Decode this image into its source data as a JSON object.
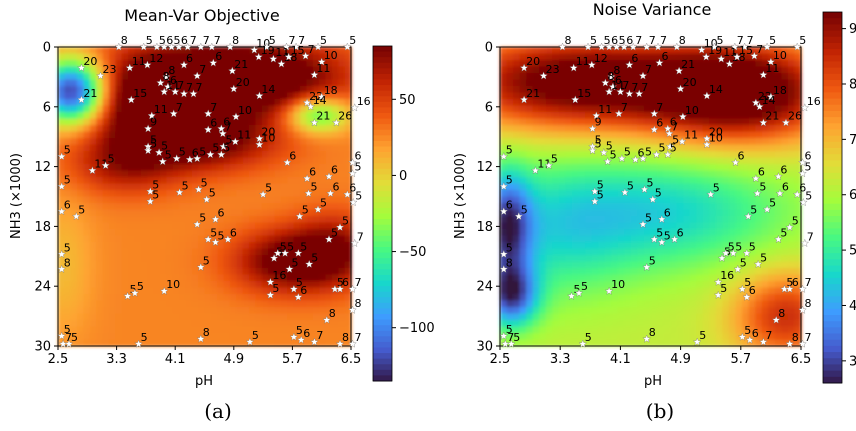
{
  "figure": {
    "caption_left": "(a)",
    "caption_right": "(b)"
  },
  "chart_data": [
    {
      "type": "heatmap",
      "title": "Mean-Var Objective",
      "xlabel": "pH",
      "ylabel": "NH3 (×1000)",
      "xlim": [
        2.5,
        6.5
      ],
      "ylim": [
        0,
        30
      ],
      "y_inverted": true,
      "x_ticks": [
        "2.5",
        "3.3",
        "4.1",
        "4.9",
        "5.7",
        "6.5"
      ],
      "y_ticks": [
        "0",
        "6",
        "12",
        "18",
        "24",
        "30"
      ],
      "colormap": "turbo",
      "colorbar": {
        "min": -135,
        "max": 85,
        "ticks": [
          "50",
          "0",
          "−50",
          "−100"
        ],
        "tick_values": [
          50,
          0,
          -50,
          -100
        ]
      },
      "blobs": [
        {
          "x": 3.9,
          "y": 5.5,
          "amp": 95,
          "sx": 0.75,
          "sy": 3.6
        },
        {
          "x": 5.25,
          "y": 3.0,
          "amp": 80,
          "sx": 0.85,
          "sy": 2.6
        },
        {
          "x": 4.5,
          "y": 9.5,
          "amp": 45,
          "sx": 0.75,
          "sy": 2.0
        },
        {
          "x": 5.7,
          "y": 21.5,
          "amp": 70,
          "sx": 0.55,
          "sy": 2.2
        },
        {
          "x": 6.3,
          "y": 20.0,
          "amp": 38,
          "sx": 0.4,
          "sy": 2.5
        },
        {
          "x": 3.4,
          "y": 12.0,
          "amp": 35,
          "sx": 0.5,
          "sy": 2.0
        },
        {
          "x": 2.7,
          "y": 4.5,
          "amp": -170,
          "sx": 0.33,
          "sy": 2.3
        },
        {
          "x": 6.05,
          "y": 6.8,
          "amp": -80,
          "sx": 0.3,
          "sy": 1.3
        },
        {
          "x": 2.55,
          "y": 22.0,
          "amp": -18,
          "sx": 0.3,
          "sy": 5.0
        }
      ],
      "base": 28
    },
    {
      "type": "heatmap",
      "title": "Noise Variance",
      "xlabel": "pH",
      "ylabel": "NH3 (×1000)",
      "xlim": [
        2.5,
        6.5
      ],
      "ylim": [
        0,
        30
      ],
      "y_inverted": true,
      "x_ticks": [
        "2.5",
        "3.3",
        "4.1",
        "4.9",
        "5.7",
        "6.5"
      ],
      "y_ticks": [
        "0",
        "6",
        "12",
        "18",
        "24",
        "30"
      ],
      "colormap": "turbo",
      "colorbar": {
        "min": 2.6,
        "max": 9.3,
        "ticks": [
          "9",
          "8",
          "7",
          "6",
          "5",
          "4",
          "3"
        ],
        "tick_values": [
          9,
          8,
          7,
          6,
          5,
          4,
          3
        ]
      },
      "blobs": [
        {
          "x": 3.5,
          "y": 3.5,
          "amp": 3.4,
          "sx": 1.2,
          "sy": 3.4
        },
        {
          "x": 5.7,
          "y": 4.5,
          "amp": 3.6,
          "sx": 0.9,
          "sy": 3.6
        },
        {
          "x": 6.3,
          "y": 27.0,
          "amp": 2.2,
          "sx": 0.5,
          "sy": 3.2
        },
        {
          "x": 4.8,
          "y": 16.5,
          "amp": -1.6,
          "sx": 1.1,
          "sy": 4.0
        },
        {
          "x": 3.2,
          "y": 18.5,
          "amp": -1.3,
          "sx": 0.8,
          "sy": 5.0
        },
        {
          "x": 2.6,
          "y": 18.0,
          "amp": -2.6,
          "sx": 0.22,
          "sy": 3.8
        },
        {
          "x": 2.65,
          "y": 25.0,
          "amp": -2.8,
          "sx": 0.25,
          "sy": 2.2
        }
      ],
      "base": 6.3
    }
  ],
  "annotations": [
    {
      "x": 3.33,
      "y": 0.0,
      "t": "8"
    },
    {
      "x": 3.67,
      "y": 0.0,
      "t": "5"
    },
    {
      "x": 3.85,
      "y": 0.0,
      "t": "5"
    },
    {
      "x": 3.95,
      "y": 0.0,
      "t": "6"
    },
    {
      "x": 4.05,
      "y": 0.0,
      "t": "5"
    },
    {
      "x": 4.15,
      "y": 0.0,
      "t": "6"
    },
    {
      "x": 4.27,
      "y": 0.0,
      "t": "7"
    },
    {
      "x": 4.45,
      "y": 0.0,
      "t": "7"
    },
    {
      "x": 4.6,
      "y": 0.0,
      "t": "7"
    },
    {
      "x": 4.85,
      "y": 0.0,
      "t": "8"
    },
    {
      "x": 5.18,
      "y": 0.3,
      "t": "10"
    },
    {
      "x": 5.35,
      "y": 0.0,
      "t": "5"
    },
    {
      "x": 5.62,
      "y": 0.0,
      "t": "7"
    },
    {
      "x": 5.75,
      "y": 0.0,
      "t": "7"
    },
    {
      "x": 6.05,
      "y": 0.0,
      "t": "5"
    },
    {
      "x": 6.45,
      "y": 0.0,
      "t": "5"
    },
    {
      "x": 2.82,
      "y": 2.1,
      "t": "20"
    },
    {
      "x": 3.08,
      "y": 2.9,
      "t": "23"
    },
    {
      "x": 3.48,
      "y": 2.1,
      "t": "11"
    },
    {
      "x": 3.72,
      "y": 1.8,
      "t": "12"
    },
    {
      "x": 4.22,
      "y": 1.8,
      "t": "6"
    },
    {
      "x": 3.98,
      "y": 3.0,
      "t": "8"
    },
    {
      "x": 4.4,
      "y": 2.9,
      "t": "7"
    },
    {
      "x": 4.62,
      "y": 1.6,
      "t": "6"
    },
    {
      "x": 4.88,
      "y": 2.4,
      "t": "21"
    },
    {
      "x": 5.24,
      "y": 1.0,
      "t": "19"
    },
    {
      "x": 5.44,
      "y": 1.2,
      "t": "11"
    },
    {
      "x": 5.55,
      "y": 1.7,
      "t": "18"
    },
    {
      "x": 5.65,
      "y": 1.0,
      "t": "15"
    },
    {
      "x": 5.88,
      "y": 0.9,
      "t": "7"
    },
    {
      "x": 6.1,
      "y": 1.5,
      "t": "10"
    },
    {
      "x": 6.0,
      "y": 2.8,
      "t": "11"
    },
    {
      "x": 3.9,
      "y": 3.6,
      "t": "8"
    },
    {
      "x": 4.0,
      "y": 4.0,
      "t": "6"
    },
    {
      "x": 3.95,
      "y": 4.5,
      "t": "11"
    },
    {
      "x": 4.1,
      "y": 4.5,
      "t": "7"
    },
    {
      "x": 4.22,
      "y": 4.7,
      "t": "7"
    },
    {
      "x": 4.35,
      "y": 4.7,
      "t": "7"
    },
    {
      "x": 4.9,
      "y": 4.2,
      "t": "20"
    },
    {
      "x": 5.25,
      "y": 4.9,
      "t": "14"
    },
    {
      "x": 2.82,
      "y": 5.3,
      "t": "21"
    },
    {
      "x": 3.5,
      "y": 5.3,
      "t": "15"
    },
    {
      "x": 3.78,
      "y": 6.9,
      "t": "11"
    },
    {
      "x": 4.08,
      "y": 6.7,
      "t": "7"
    },
    {
      "x": 4.55,
      "y": 6.7,
      "t": "7"
    },
    {
      "x": 4.93,
      "y": 7.0,
      "t": "10"
    },
    {
      "x": 5.9,
      "y": 5.6,
      "t": "22"
    },
    {
      "x": 6.1,
      "y": 5.0,
      "t": "18"
    },
    {
      "x": 5.95,
      "y": 6.0,
      "t": "14"
    },
    {
      "x": 6.0,
      "y": 7.6,
      "t": "21"
    },
    {
      "x": 6.3,
      "y": 7.6,
      "t": "26"
    },
    {
      "x": 6.55,
      "y": 6.1,
      "t": "16"
    },
    {
      "x": 3.73,
      "y": 8.2,
      "t": "9"
    },
    {
      "x": 4.55,
      "y": 8.3,
      "t": "6"
    },
    {
      "x": 4.73,
      "y": 8.2,
      "t": "6"
    },
    {
      "x": 4.75,
      "y": 8.7,
      "t": "7"
    },
    {
      "x": 5.25,
      "y": 9.2,
      "t": "20"
    },
    {
      "x": 5.25,
      "y": 9.8,
      "t": "10"
    },
    {
      "x": 4.92,
      "y": 9.5,
      "t": "11"
    },
    {
      "x": 4.76,
      "y": 10.0,
      "t": "5"
    },
    {
      "x": 3.73,
      "y": 10.0,
      "t": "5"
    },
    {
      "x": 3.73,
      "y": 10.4,
      "t": "5"
    },
    {
      "x": 3.88,
      "y": 10.6,
      "t": "5"
    },
    {
      "x": 3.93,
      "y": 11.5,
      "t": "5"
    },
    {
      "x": 4.12,
      "y": 11.2,
      "t": "5"
    },
    {
      "x": 4.3,
      "y": 11.3,
      "t": "6"
    },
    {
      "x": 4.4,
      "y": 11.2,
      "t": "5"
    },
    {
      "x": 4.58,
      "y": 10.8,
      "t": "5"
    },
    {
      "x": 4.73,
      "y": 10.8,
      "t": "5"
    },
    {
      "x": 5.63,
      "y": 11.6,
      "t": "6"
    },
    {
      "x": 2.55,
      "y": 11.0,
      "t": "5"
    },
    {
      "x": 2.97,
      "y": 12.4,
      "t": "11"
    },
    {
      "x": 3.15,
      "y": 11.9,
      "t": "5"
    },
    {
      "x": 6.52,
      "y": 11.6,
      "t": "6"
    },
    {
      "x": 6.52,
      "y": 12.7,
      "t": "5"
    },
    {
      "x": 5.9,
      "y": 13.2,
      "t": "6"
    },
    {
      "x": 6.2,
      "y": 13.0,
      "t": "6"
    },
    {
      "x": 2.55,
      "y": 14.0,
      "t": "5"
    },
    {
      "x": 5.3,
      "y": 14.8,
      "t": "5"
    },
    {
      "x": 5.92,
      "y": 14.7,
      "t": "5"
    },
    {
      "x": 6.22,
      "y": 14.7,
      "t": "6"
    },
    {
      "x": 6.45,
      "y": 14.8,
      "t": "6"
    },
    {
      "x": 6.53,
      "y": 15.6,
      "t": "5"
    },
    {
      "x": 3.76,
      "y": 14.5,
      "t": "5"
    },
    {
      "x": 3.76,
      "y": 15.5,
      "t": "5"
    },
    {
      "x": 4.16,
      "y": 14.6,
      "t": "5"
    },
    {
      "x": 4.42,
      "y": 14.3,
      "t": "5"
    },
    {
      "x": 4.53,
      "y": 15.3,
      "t": "5"
    },
    {
      "x": 2.55,
      "y": 16.5,
      "t": "6"
    },
    {
      "x": 2.75,
      "y": 17.0,
      "t": "5"
    },
    {
      "x": 4.4,
      "y": 17.8,
      "t": "5"
    },
    {
      "x": 4.65,
      "y": 17.3,
      "t": "6"
    },
    {
      "x": 4.55,
      "y": 19.3,
      "t": "5"
    },
    {
      "x": 4.65,
      "y": 19.6,
      "t": "5"
    },
    {
      "x": 4.82,
      "y": 19.3,
      "t": "6"
    },
    {
      "x": 5.8,
      "y": 17.0,
      "t": "5"
    },
    {
      "x": 6.05,
      "y": 16.3,
      "t": "5"
    },
    {
      "x": 6.2,
      "y": 19.3,
      "t": "5"
    },
    {
      "x": 6.35,
      "y": 18.1,
      "t": "5"
    },
    {
      "x": 6.55,
      "y": 19.7,
      "t": "7"
    },
    {
      "x": 5.45,
      "y": 21.2,
      "t": "5"
    },
    {
      "x": 5.5,
      "y": 20.7,
      "t": "5"
    },
    {
      "x": 5.6,
      "y": 20.7,
      "t": "5"
    },
    {
      "x": 5.78,
      "y": 20.7,
      "t": "5"
    },
    {
      "x": 5.93,
      "y": 21.8,
      "t": "5"
    },
    {
      "x": 2.55,
      "y": 20.8,
      "t": "5"
    },
    {
      "x": 2.55,
      "y": 22.3,
      "t": "8"
    },
    {
      "x": 4.45,
      "y": 22.1,
      "t": "5"
    },
    {
      "x": 5.4,
      "y": 23.6,
      "t": "16"
    },
    {
      "x": 5.66,
      "y": 22.3,
      "t": "5"
    },
    {
      "x": 5.72,
      "y": 24.3,
      "t": "5"
    },
    {
      "x": 5.78,
      "y": 25.1,
      "t": "6"
    },
    {
      "x": 5.4,
      "y": 24.9,
      "t": "5"
    },
    {
      "x": 6.28,
      "y": 24.3,
      "t": "5"
    },
    {
      "x": 6.35,
      "y": 24.3,
      "t": "6"
    },
    {
      "x": 6.52,
      "y": 24.3,
      "t": "7"
    },
    {
      "x": 3.45,
      "y": 25.0,
      "t": "5"
    },
    {
      "x": 3.55,
      "y": 24.7,
      "t": "5"
    },
    {
      "x": 3.95,
      "y": 24.5,
      "t": "10"
    },
    {
      "x": 6.52,
      "y": 26.4,
      "t": "8"
    },
    {
      "x": 6.17,
      "y": 27.4,
      "t": "8"
    },
    {
      "x": 2.55,
      "y": 29.0,
      "t": "5"
    },
    {
      "x": 2.57,
      "y": 29.8,
      "t": "7"
    },
    {
      "x": 2.65,
      "y": 29.8,
      "t": "5"
    },
    {
      "x": 3.6,
      "y": 29.8,
      "t": "5"
    },
    {
      "x": 4.45,
      "y": 29.3,
      "t": "8"
    },
    {
      "x": 5.12,
      "y": 29.6,
      "t": "5"
    },
    {
      "x": 5.72,
      "y": 29.1,
      "t": "5"
    },
    {
      "x": 5.82,
      "y": 29.4,
      "t": "6"
    },
    {
      "x": 6.0,
      "y": 29.6,
      "t": "7"
    },
    {
      "x": 6.35,
      "y": 29.8,
      "t": "8"
    },
    {
      "x": 6.52,
      "y": 29.8,
      "t": "7"
    }
  ]
}
